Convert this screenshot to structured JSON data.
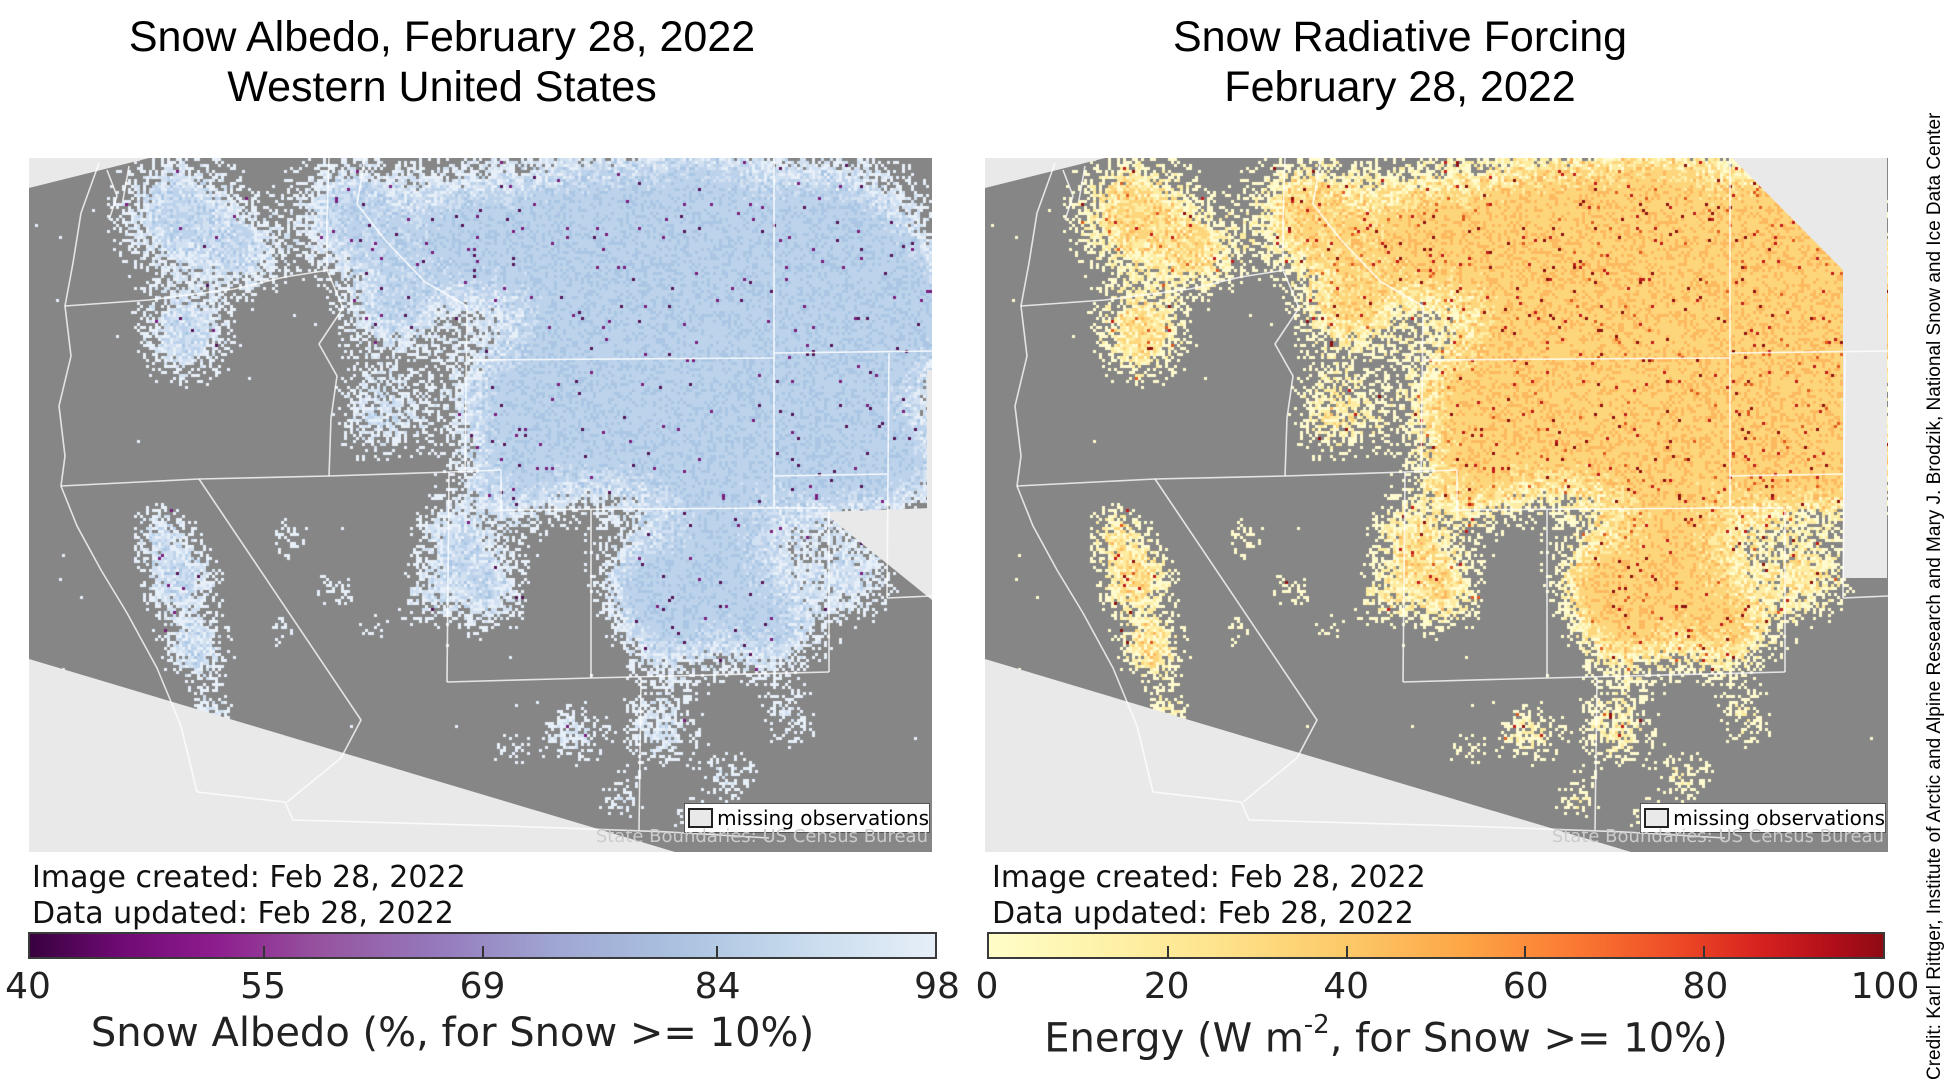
{
  "left_panel": {
    "title_line1": "Snow Albedo, February 28, 2022",
    "title_line2": "Western United States",
    "image_created": "Image created: Feb 28, 2022",
    "data_updated": "Data updated: Feb 28, 2022",
    "legend_label": "missing observations",
    "boundaries_note": "State Boundaries: US Census Bureau",
    "colorbar": {
      "min": 40,
      "max": 98,
      "tick_values": [
        40,
        55,
        69,
        84,
        98
      ],
      "label": "Snow Albedo (%, for Snow >= 10%)",
      "gradient": [
        "#38013e 0%",
        "#6f0a74 10%",
        "#8d1b8d 20%",
        "#96539f 32%",
        "#9579bc 45%",
        "#9fa6d2 58%",
        "#abc3e1 72%",
        "#c9dcee 86%",
        "#e6eff8 100%"
      ]
    }
  },
  "right_panel": {
    "title_line1": "Snow Radiative Forcing",
    "title_line2": "February 28, 2022",
    "image_created": "Image created: Feb 28, 2022",
    "data_updated": "Data updated: Feb 28, 2022",
    "legend_label": "missing observations",
    "boundaries_note": "State Boundaries: US Census Bureau",
    "colorbar": {
      "min": 0,
      "max": 100,
      "tick_values": [
        0,
        20,
        40,
        60,
        80,
        100
      ],
      "label_prefix": "Energy (W m",
      "label_sup": "-2",
      "label_suffix": ", for Snow >= 10%)",
      "gradient": [
        "#fffdc8 0%",
        "#fef3ab 12%",
        "#fee48d 25%",
        "#fdc968 40%",
        "#fda646 53%",
        "#fb7b33 65%",
        "#ef4e27 76%",
        "#d8231f 86%",
        "#b30f1a 94%",
        "#8f0a13 100%"
      ]
    }
  },
  "credit": "Credit: Karl Rittger, Institute of Arctic and Alpine Research and Mary J. Brodzik, National Snow and Ice Data Center",
  "colors": {
    "land_gray": "#868686",
    "missing_gray": "#e9e9e9",
    "state_boundary": "rgba(255,255,255,0.78)",
    "albedo_low": "#e7eff8",
    "albedo_mid": "#d2e1f2",
    "albedo_high": "#bdd3eb",
    "albedo_deep": "#aac6e4",
    "albedo_speck": [
      "#541457",
      "#7a1f7c"
    ],
    "forcing_low": "#fffbce",
    "forcing_mid": "#fdeca2",
    "forcing_high": "#fdd67c",
    "forcing_deep": "#fdb95f",
    "forcing_speck": [
      "#e05a20",
      "#c21a1a",
      "#8c1010"
    ]
  }
}
